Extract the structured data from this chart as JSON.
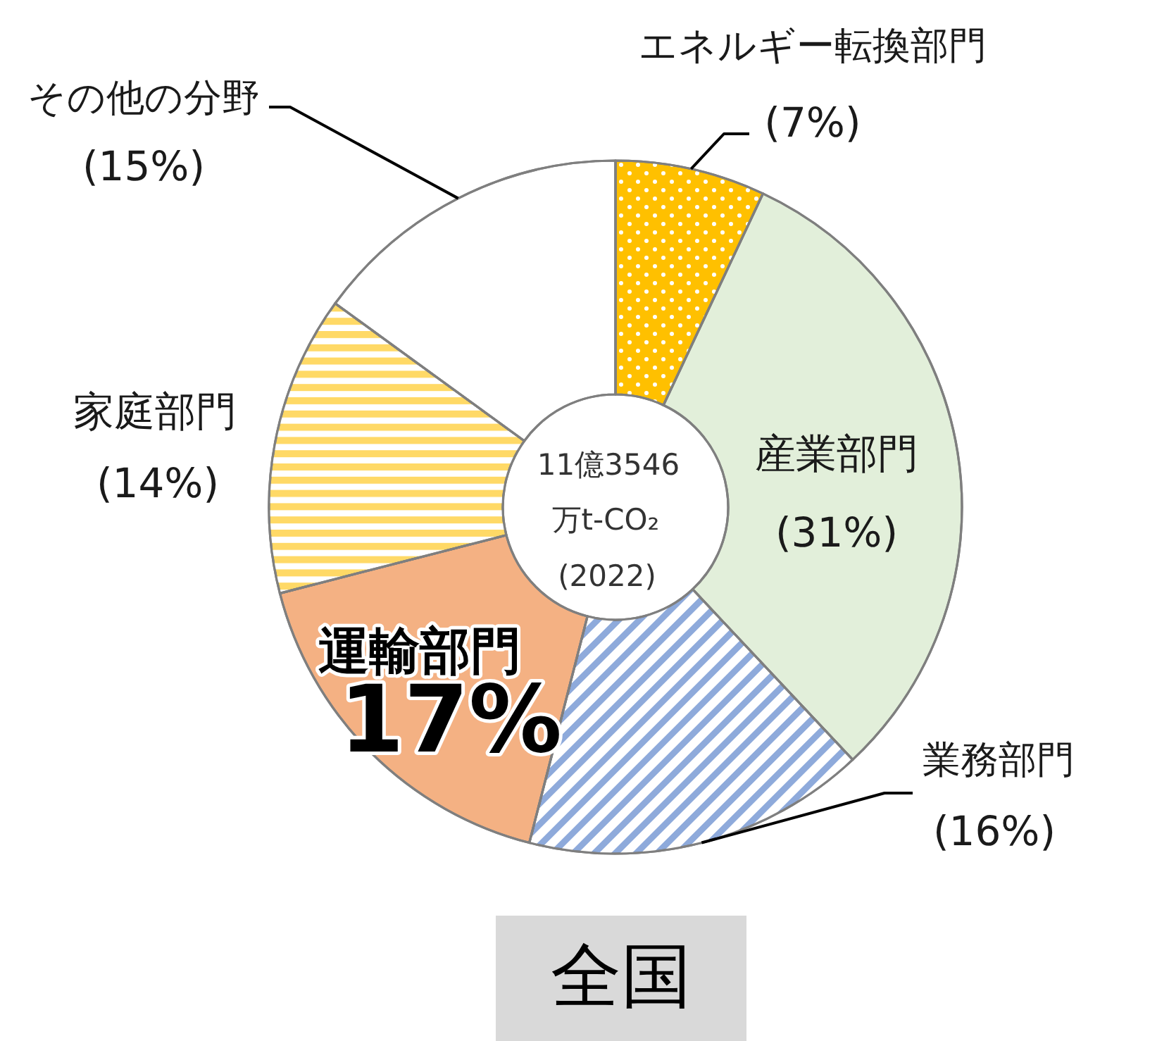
{
  "chart_data": {
    "type": "donut",
    "title": "全国",
    "categories": [
      "エネルギー転換部門",
      "産業部門",
      "業務部門",
      "運輸部門",
      "家庭部門",
      "その他の分野"
    ],
    "values": [
      7,
      31,
      16,
      17,
      14,
      15
    ],
    "colors": [
      "#ffc000",
      "#e2efda",
      "#8eaadb",
      "#f4b183",
      "#ffd966",
      "#ffffff"
    ],
    "value_labels": [
      "(7%)",
      "(31%)",
      "(16%)",
      "17%",
      "(14%)",
      "(15%)"
    ],
    "annotations": [
      "11億3546",
      "万t-CO₂",
      "(2022)"
    ]
  }
}
